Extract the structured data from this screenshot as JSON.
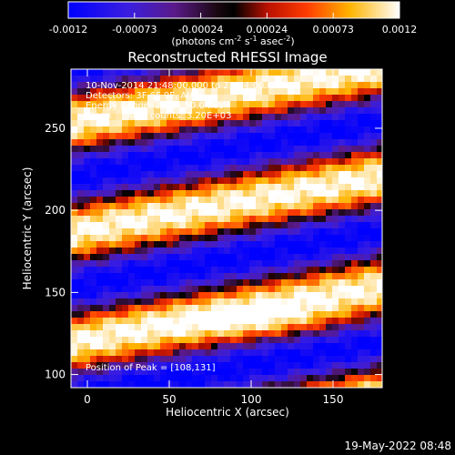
{
  "colorbar": {
    "tick_labels": [
      "-0.0012",
      "-0.00073",
      "-0.00024",
      "0.00024",
      "0.00073",
      "0.0012"
    ],
    "unit_label": "(photons cm",
    "unit_sup1": "-2",
    "unit_mid": " s",
    "unit_sup2": "-1",
    "unit_mid2": " asec",
    "unit_sup3": "-2",
    "unit_end": ")"
  },
  "chart_data": {
    "type": "heatmap",
    "title": "Reconstructed RHESSI Image",
    "xlabel": "Heliocentric X (arcsec)",
    "ylabel": "Heliocentric Y (arcsec)",
    "xlim": [
      -10,
      180
    ],
    "ylim": [
      92,
      286
    ],
    "x_ticks": [
      0,
      50,
      100,
      150
    ],
    "y_ticks": [
      100,
      150,
      200,
      250
    ],
    "value_range": [
      -0.0012,
      0.0012
    ],
    "colormap": "rhessi blue-purple-black-red-orange-yellow-white",
    "annotations": [
      "10-Nov-2014 21:48:00.000 to 21:54:00.000",
      "Detectors: 3F 6F 9F, Att 0",
      "Energy Range: 25.0 - 50.0 keV",
      "Clean     Total counts: 3.20E+03"
    ],
    "peak_text": "Position of Peak = [108,131]",
    "peak": [
      108,
      131
    ],
    "band_centers_y": [
      132,
      208,
      272
    ],
    "band_period": 67,
    "band_slope": 0.18
  },
  "timestamp": "19-May-2022 08:48",
  "colors": {
    "background": "#000000",
    "axis": "#ffffff",
    "gradient": [
      "#0000ff",
      "#6a2cc8",
      "#5a1a6a",
      "#000000",
      "#c81400",
      "#ff5a00",
      "#ffc800",
      "#ffffff"
    ]
  }
}
